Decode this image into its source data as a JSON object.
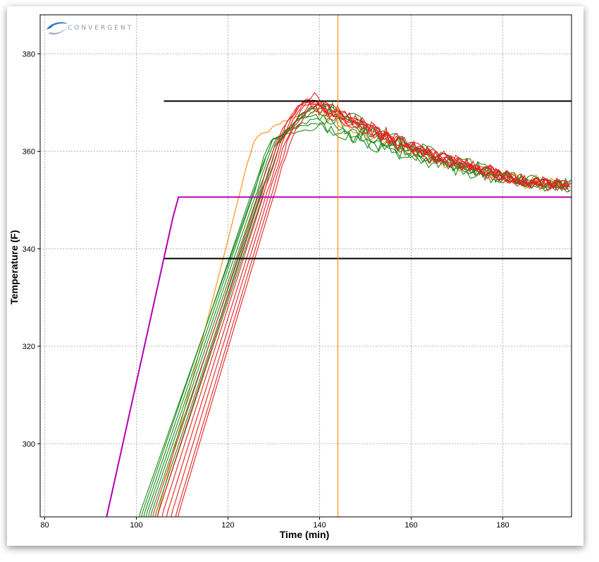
{
  "chart_data": {
    "type": "line",
    "title": "",
    "xlabel": "Time (min)",
    "ylabel": "Temperature (F)",
    "xlim": [
      79,
      195
    ],
    "ylim": [
      285,
      388
    ],
    "xticks": [
      80,
      100,
      120,
      140,
      160,
      180
    ],
    "yticks": [
      300,
      320,
      340,
      360,
      380
    ],
    "grid": true,
    "reference_lines": [
      {
        "name": "",
        "color": "#000000",
        "x": [
          106,
          195
        ],
        "y": [
          370.3,
          370.3
        ]
      },
      {
        "name": "",
        "color": "#000000",
        "x": [
          106,
          195
        ],
        "y": [
          338.0,
          338.0
        ]
      },
      {
        "name": "",
        "color": "#b400b4",
        "x": [
          93.5,
          108,
          109.2,
          195
        ],
        "y": [
          285,
          346.5,
          350.6,
          350.6
        ]
      },
      {
        "name": "",
        "color": "#ff8c00",
        "x": [
          144,
          144
        ],
        "y": [
          285,
          388
        ]
      }
    ],
    "curve_series": [
      {
        "color": "#ff8c00",
        "start": 104.5,
        "rise_end": 125.5,
        "peak_x": 139.0,
        "peak_y": 368.0
      },
      {
        "color": "#1e8c1e",
        "start": 100.5,
        "rise_end": 129.5,
        "peak_x": 140.0,
        "peak_y": 364.8
      },
      {
        "color": "#1e8c1e",
        "start": 101.0,
        "rise_end": 129.0,
        "peak_x": 140.0,
        "peak_y": 365.5
      },
      {
        "color": "#1e8c1e",
        "start": 101.5,
        "rise_end": 129.5,
        "peak_x": 140.5,
        "peak_y": 366.5
      },
      {
        "color": "#1e8c1e",
        "start": 102.0,
        "rise_end": 130.0,
        "peak_x": 139.5,
        "peak_y": 367.5
      },
      {
        "color": "#1e8c1e",
        "start": 102.5,
        "rise_end": 130.5,
        "peak_x": 140.5,
        "peak_y": 368.2
      },
      {
        "color": "#1e8c1e",
        "start": 103.0,
        "rise_end": 131.0,
        "peak_x": 141.0,
        "peak_y": 369.0
      },
      {
        "color": "#1e8c1e",
        "start": 104.0,
        "rise_end": 131.0,
        "peak_x": 140.5,
        "peak_y": 369.5
      },
      {
        "color": "#1e8c1e",
        "start": 104.5,
        "rise_end": 131.5,
        "peak_x": 141.0,
        "peak_y": 369.8
      },
      {
        "color": "#e82020",
        "start": 103.5,
        "rise_end": 130.5,
        "peak_x": 137.0,
        "peak_y": 369.6
      },
      {
        "color": "#e82020",
        "start": 104.5,
        "rise_end": 131.0,
        "peak_x": 137.5,
        "peak_y": 370.2
      },
      {
        "color": "#e82020",
        "start": 105.5,
        "rise_end": 131.5,
        "peak_x": 138.0,
        "peak_y": 370.5
      },
      {
        "color": "#e82020",
        "start": 106.5,
        "rise_end": 132.0,
        "peak_x": 138.5,
        "peak_y": 370.8
      },
      {
        "color": "#e82020",
        "start": 107.5,
        "rise_end": 132.5,
        "peak_x": 139.0,
        "peak_y": 370.4
      },
      {
        "color": "#e82020",
        "start": 108.5,
        "rise_end": 133.0,
        "peak_x": 139.5,
        "peak_y": 370.0
      },
      {
        "color": "#e82020",
        "start": 109.0,
        "rise_end": 133.5,
        "peak_x": 140.0,
        "peak_y": 369.6
      }
    ],
    "curve_shape": {
      "rise_end_y": 362.0,
      "plateau_y": 353.0,
      "x_end": 195.0
    }
  },
  "logo": {
    "name": "CONVERGENT",
    "text": "CONVERGENT",
    "icon": "swoosh-logo-icon",
    "color": "#8a96a8"
  }
}
